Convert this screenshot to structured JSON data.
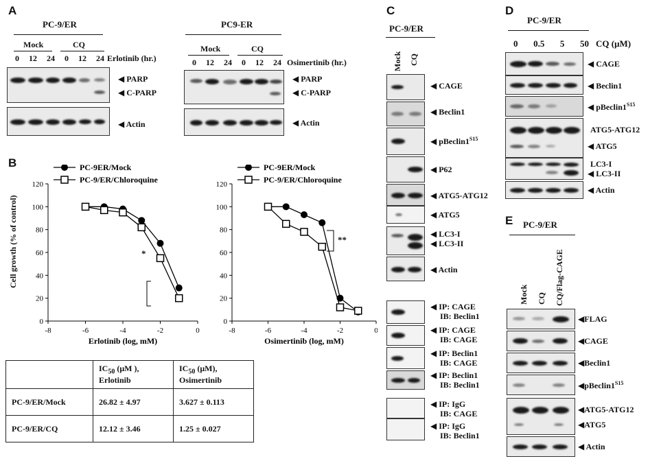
{
  "panel_letters": {
    "a": "A",
    "b": "B",
    "c": "C",
    "d": "D",
    "e": "E"
  },
  "panelA": {
    "left": {
      "cell_line": "PC-9/ER",
      "group1": "Mock",
      "group2": "CQ",
      "drug": "Erlotinib (hr.)",
      "times": [
        "0",
        "12",
        "24",
        "0",
        "12",
        "24"
      ]
    },
    "right": {
      "cell_line": "PC9-ER",
      "group1": "Mock",
      "group2": "CQ",
      "drug": "Osimertinib (hr.)",
      "times": [
        "0",
        "12",
        "24",
        "0",
        "12",
        "24"
      ]
    },
    "bands": [
      "◀ PARP",
      "◀ C-PARP",
      "◀ Actin"
    ]
  },
  "panelB": {
    "ylabel": "Cell growth (% of control)",
    "sig_left": "*",
    "sig_right": "**"
  },
  "chart_data": [
    {
      "type": "line",
      "xlabel": "Erlotinib (log, mM)",
      "ylabel": "Cell growth (% of control)",
      "xlim": [
        -8,
        0
      ],
      "ylim": [
        0,
        120
      ],
      "xticks": [
        "-8",
        "-6",
        "-4",
        "-2",
        "0"
      ],
      "yticks": [
        "0",
        "20",
        "40",
        "60",
        "80",
        "100",
        "120"
      ],
      "series": [
        {
          "name": "PC-9ER/Mock",
          "marker": "filled-circle",
          "x": [
            -6,
            -5,
            -4,
            -3,
            -2,
            -1
          ],
          "y": [
            100,
            100,
            98,
            88,
            68,
            29
          ]
        },
        {
          "name": "PC-9/ER/Chloroquine",
          "marker": "open-square",
          "x": [
            -6,
            -5,
            -4,
            -3,
            -2,
            -1
          ],
          "y": [
            100,
            97,
            95,
            82,
            55,
            20
          ]
        }
      ]
    },
    {
      "type": "line",
      "xlabel": "Osimertinib (log, mM)",
      "ylabel": "Cell growth (% of control)",
      "xlim": [
        -8,
        0
      ],
      "ylim": [
        0,
        120
      ],
      "xticks": [
        "-8",
        "-6",
        "-4",
        "-2",
        "0"
      ],
      "yticks": [
        "0",
        "20",
        "40",
        "60",
        "80",
        "100",
        "120"
      ],
      "series": [
        {
          "name": "PC-9ER/Mock",
          "marker": "filled-circle",
          "x": [
            -6,
            -5,
            -4,
            -3,
            -2,
            -1
          ],
          "y": [
            100,
            100,
            93,
            86,
            20,
            8
          ]
        },
        {
          "name": "PC-9/ER/Chloroquine",
          "marker": "open-square",
          "x": [
            -6,
            -5,
            -4,
            -3,
            -2,
            -1
          ],
          "y": [
            100,
            85,
            78,
            65,
            12,
            9
          ]
        }
      ]
    }
  ],
  "ic50_table": {
    "headers": [
      "",
      "IC50 (μM ), Erlotinib",
      "IC50 (μM), Osimertinib"
    ],
    "rows": [
      [
        "PC-9/ER/Mock",
        "26.82 ± 4.97",
        "3.627 ± 0.113"
      ],
      [
        "PC-9/ER/CQ",
        "12.12 ± 3.46",
        "1.25 ± 0.027"
      ]
    ]
  },
  "panelC": {
    "cell_line": "PC-9/ER",
    "lanes": [
      "Mock",
      "CQ"
    ],
    "bands": [
      "◀ CAGE",
      "◀ Beclin1",
      "◀ pBeclin1S15",
      "◀ P62",
      "◀ ATG5-ATG12",
      "◀ ATG5",
      "◀ LC3-I",
      "◀ LC3-II",
      "◀ Actin"
    ],
    "ip": [
      [
        "◀ IP: CAGE",
        "IB: Beclin1"
      ],
      [
        "◀ IP: CAGE",
        "IB: CAGE"
      ],
      [
        "◀ IP: Beclin1",
        "IB: CAGE"
      ],
      [
        "◀ IP: Beclin1",
        "IB: Beclin1"
      ],
      [
        "◀ IP: IgG",
        "IB: CAGE"
      ],
      [
        "◀ IP: IgG",
        "IB: Beclin1"
      ]
    ]
  },
  "panelD": {
    "cell_line": "PC-9/ER",
    "doses": [
      "0",
      "0.5",
      "5",
      "50"
    ],
    "dose_label": "CQ (μM)",
    "bands": [
      "◀ CAGE",
      "◀ Beclin1",
      "◀ pBeclin1S15",
      "ATG5-ATG12",
      "◀ ATG5",
      "LC3-I",
      "◀ LC3-II",
      "◀ Actin"
    ]
  },
  "panelE": {
    "cell_line": "PC-9/ER",
    "lanes": [
      "Mock",
      "CQ",
      "CQ/Flag-CAGE"
    ],
    "bands": [
      "◀FLAG",
      "◀CAGE",
      "◀Beclin1",
      "◀pBeclin1S15",
      "◀ATG5-ATG12",
      "◀ATG5",
      "◀ Actin"
    ]
  }
}
